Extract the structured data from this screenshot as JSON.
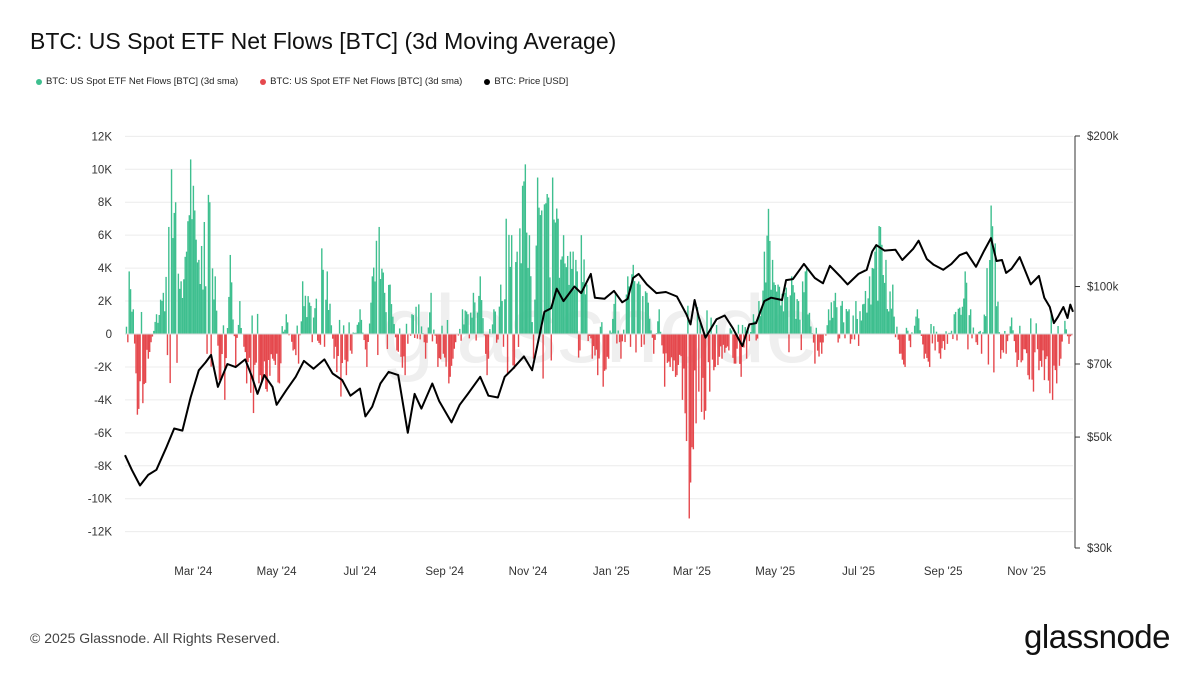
{
  "colors": {
    "inflow": "#3ebf8f",
    "outflow": "#e5484d",
    "price": "#000000",
    "grid": "#ececec",
    "watermark": "#efefef"
  },
  "footer": {
    "copyright": "© 2025 Glassnode. All Rights Reserved.",
    "logo_text": "glassnode",
    "watermark": "glassnode"
  },
  "chart_data": {
    "type": "bar+line",
    "title": "BTC: US Spot ETF Net Flows [BTC] (3d Moving Average)",
    "legend": [
      {
        "label": "BTC: US Spot ETF Net Flows [BTC] (3d sma)",
        "color": "#3ebf8f"
      },
      {
        "label": "BTC: US Spot ETF Net Flows [BTC] (3d sma)",
        "color": "#e5484d"
      },
      {
        "label": "BTC: Price [USD]",
        "color": "#000000"
      }
    ],
    "legend_position": "top-left",
    "grid": true,
    "x_range": [
      "2024-01-11",
      "2025-12-05"
    ],
    "x_ticks": [
      {
        "date": "2024-03-01",
        "label": "Mar '24"
      },
      {
        "date": "2024-05-01",
        "label": "May '24"
      },
      {
        "date": "2024-07-01",
        "label": "Jul '24"
      },
      {
        "date": "2024-09-01",
        "label": "Sep '24"
      },
      {
        "date": "2024-11-01",
        "label": "Nov '24"
      },
      {
        "date": "2025-01-01",
        "label": "Jan '25"
      },
      {
        "date": "2025-03-01",
        "label": "Mar '25"
      },
      {
        "date": "2025-05-01",
        "label": "May '25"
      },
      {
        "date": "2025-07-01",
        "label": "Jul '25"
      },
      {
        "date": "2025-09-01",
        "label": "Sep '25"
      },
      {
        "date": "2025-11-01",
        "label": "Nov '25"
      }
    ],
    "y_left": {
      "label": "Net Flows [BTC]",
      "ylim": [
        -12500,
        12000
      ],
      "ticks": [
        12000,
        10000,
        8000,
        6000,
        4000,
        2000,
        0,
        -2000,
        -4000,
        -6000,
        -8000,
        -10000,
        -12000
      ],
      "tick_labels": [
        "12K",
        "10K",
        "8K",
        "6K",
        "4K",
        "2K",
        "0",
        "-2K",
        "-4K",
        "-6K",
        "-8K",
        "-10K",
        "-12K"
      ]
    },
    "y_right": {
      "label": "Price [USD]",
      "scale": "log",
      "ylim": [
        30000,
        200000
      ],
      "ticks": [
        200000,
        100000,
        70000,
        50000,
        30000
      ],
      "tick_labels": [
        "$200k",
        "$100k",
        "$70k",
        "$50k",
        "$30k"
      ]
    },
    "flow_anchors_note": "3d SMA net flows [BTC], piecewise envelope read from chart",
    "flows": [
      [
        "2024-01-11",
        0
      ],
      [
        "2024-01-14",
        3800
      ],
      [
        "2024-01-17",
        1500
      ],
      [
        "2024-01-20",
        -4900
      ],
      [
        "2024-01-24",
        -4200
      ],
      [
        "2024-01-28",
        -1500
      ],
      [
        "2024-02-03",
        1200
      ],
      [
        "2024-02-08",
        2500
      ],
      [
        "2024-02-12",
        6500
      ],
      [
        "2024-02-14",
        10000
      ],
      [
        "2024-02-17",
        8000
      ],
      [
        "2024-02-21",
        3200
      ],
      [
        "2024-02-25",
        5000
      ],
      [
        "2024-02-28",
        10600
      ],
      [
        "2024-03-02",
        7500
      ],
      [
        "2024-03-05",
        4500
      ],
      [
        "2024-03-09",
        6800
      ],
      [
        "2024-03-13",
        8000
      ],
      [
        "2024-03-17",
        3500
      ],
      [
        "2024-03-20",
        -2800
      ],
      [
        "2024-03-24",
        -4000
      ],
      [
        "2024-03-28",
        4800
      ],
      [
        "2024-04-01",
        -2000
      ],
      [
        "2024-04-04",
        2000
      ],
      [
        "2024-04-09",
        -3000
      ],
      [
        "2024-04-14",
        -4800
      ],
      [
        "2024-04-19",
        -2500
      ],
      [
        "2024-04-24",
        -3500
      ],
      [
        "2024-04-28",
        -1500
      ],
      [
        "2024-05-03",
        -3000
      ],
      [
        "2024-05-08",
        1200
      ],
      [
        "2024-05-13",
        -1000
      ],
      [
        "2024-05-17",
        -1800
      ],
      [
        "2024-05-20",
        3200
      ],
      [
        "2024-05-24",
        2300
      ],
      [
        "2024-05-28",
        1000
      ],
      [
        "2024-06-03",
        5200
      ],
      [
        "2024-06-07",
        3800
      ],
      [
        "2024-06-12",
        -1500
      ],
      [
        "2024-06-17",
        -3800
      ],
      [
        "2024-06-21",
        -2500
      ],
      [
        "2024-06-25",
        -1200
      ],
      [
        "2024-07-01",
        1500
      ],
      [
        "2024-07-06",
        -2000
      ],
      [
        "2024-07-10",
        3500
      ],
      [
        "2024-07-15",
        6500
      ],
      [
        "2024-07-19",
        2500
      ],
      [
        "2024-07-23",
        3000
      ],
      [
        "2024-07-28",
        -1000
      ],
      [
        "2024-08-03",
        -2500
      ],
      [
        "2024-08-08",
        1200
      ],
      [
        "2024-08-13",
        1800
      ],
      [
        "2024-08-18",
        -1500
      ],
      [
        "2024-08-22",
        2500
      ],
      [
        "2024-08-27",
        -2000
      ],
      [
        "2024-08-31",
        -1200
      ],
      [
        "2024-09-04",
        -3000
      ],
      [
        "2024-09-09",
        -500
      ],
      [
        "2024-09-14",
        1500
      ],
      [
        "2024-09-18",
        1200
      ],
      [
        "2024-09-22",
        2500
      ],
      [
        "2024-09-27",
        3500
      ],
      [
        "2024-10-02",
        -2500
      ],
      [
        "2024-10-07",
        1500
      ],
      [
        "2024-10-12",
        3000
      ],
      [
        "2024-10-16",
        7000
      ],
      [
        "2024-10-20",
        6000
      ],
      [
        "2024-10-24",
        5000
      ],
      [
        "2024-10-28",
        9000
      ],
      [
        "2024-10-30",
        10300
      ],
      [
        "2024-11-02",
        6000
      ],
      [
        "2024-11-05",
        -1500
      ],
      [
        "2024-11-08",
        9500
      ],
      [
        "2024-11-11",
        7500
      ],
      [
        "2024-11-15",
        8500
      ],
      [
        "2024-11-19",
        9500
      ],
      [
        "2024-11-23",
        7000
      ],
      [
        "2024-11-27",
        6000
      ],
      [
        "2024-12-02",
        5000
      ],
      [
        "2024-12-06",
        4500
      ],
      [
        "2024-12-10",
        6000
      ],
      [
        "2024-12-14",
        3000
      ],
      [
        "2024-12-18",
        -1500
      ],
      [
        "2024-12-22",
        -2500
      ],
      [
        "2024-12-26",
        -3200
      ],
      [
        "2024-12-30",
        -1500
      ],
      [
        "2025-01-04",
        2500
      ],
      [
        "2025-01-08",
        -1500
      ],
      [
        "2025-01-13",
        3500
      ],
      [
        "2025-01-17",
        4200
      ],
      [
        "2025-01-22",
        3000
      ],
      [
        "2025-01-27",
        2500
      ],
      [
        "2025-02-01",
        -1200
      ],
      [
        "2025-02-05",
        1500
      ],
      [
        "2025-02-09",
        -3200
      ],
      [
        "2025-02-13",
        -2000
      ],
      [
        "2025-02-18",
        -2500
      ],
      [
        "2025-02-22",
        -4000
      ],
      [
        "2025-02-25",
        -6500
      ],
      [
        "2025-02-27",
        -11200
      ],
      [
        "2025-03-02",
        -7000
      ],
      [
        "2025-03-06",
        -3500
      ],
      [
        "2025-03-10",
        -5200
      ],
      [
        "2025-03-14",
        -3500
      ],
      [
        "2025-03-18",
        -2000
      ],
      [
        "2025-03-23",
        -1500
      ],
      [
        "2025-03-28",
        -1000
      ],
      [
        "2025-04-02",
        -1800
      ],
      [
        "2025-04-06",
        -2600
      ],
      [
        "2025-04-10",
        -1500
      ],
      [
        "2025-04-15",
        1200
      ],
      [
        "2025-04-19",
        2000
      ],
      [
        "2025-04-23",
        5000
      ],
      [
        "2025-04-26",
        7600
      ],
      [
        "2025-04-29",
        4500
      ],
      [
        "2025-05-03",
        3000
      ],
      [
        "2025-05-08",
        2500
      ],
      [
        "2025-05-13",
        3500
      ],
      [
        "2025-05-18",
        2000
      ],
      [
        "2025-05-24",
        4000
      ],
      [
        "2025-05-30",
        -1800
      ],
      [
        "2025-06-04",
        -1200
      ],
      [
        "2025-06-09",
        1500
      ],
      [
        "2025-06-14",
        2500
      ],
      [
        "2025-06-19",
        2000
      ],
      [
        "2025-06-24",
        1500
      ],
      [
        "2025-06-29",
        2000
      ],
      [
        "2025-07-04",
        1800
      ],
      [
        "2025-07-09",
        3500
      ],
      [
        "2025-07-13",
        5000
      ],
      [
        "2025-07-17",
        6500
      ],
      [
        "2025-07-21",
        4500
      ],
      [
        "2025-07-26",
        3000
      ],
      [
        "2025-07-31",
        -1200
      ],
      [
        "2025-08-04",
        -2000
      ],
      [
        "2025-08-08",
        -800
      ],
      [
        "2025-08-13",
        1500
      ],
      [
        "2025-08-18",
        -1500
      ],
      [
        "2025-08-22",
        -2000
      ],
      [
        "2025-08-26",
        -1000
      ],
      [
        "2025-08-30",
        -1500
      ],
      [
        "2025-09-04",
        -600
      ],
      [
        "2025-09-09",
        1200
      ],
      [
        "2025-09-13",
        1600
      ],
      [
        "2025-09-17",
        3800
      ],
      [
        "2025-09-21",
        1500
      ],
      [
        "2025-09-25",
        -500
      ],
      [
        "2025-09-29",
        -1200
      ],
      [
        "2025-10-03",
        4000
      ],
      [
        "2025-10-06",
        7800
      ],
      [
        "2025-10-09",
        5500
      ],
      [
        "2025-10-13",
        -1500
      ],
      [
        "2025-10-17",
        -1200
      ],
      [
        "2025-10-21",
        1000
      ],
      [
        "2025-10-25",
        -2000
      ],
      [
        "2025-10-29",
        -1600
      ],
      [
        "2025-11-02",
        -2500
      ],
      [
        "2025-11-06",
        -3500
      ],
      [
        "2025-11-10",
        -2200
      ],
      [
        "2025-11-14",
        -2800
      ],
      [
        "2025-11-18",
        -3600
      ],
      [
        "2025-11-20",
        -4000
      ],
      [
        "2025-11-23",
        -3000
      ],
      [
        "2025-11-26",
        -1500
      ],
      [
        "2025-11-29",
        800
      ],
      [
        "2025-12-02",
        -600
      ],
      [
        "2025-12-05",
        0
      ]
    ],
    "price": [
      [
        "2024-01-11",
        46000
      ],
      [
        "2024-01-16",
        43000
      ],
      [
        "2024-01-22",
        40000
      ],
      [
        "2024-01-28",
        42000
      ],
      [
        "2024-02-03",
        43000
      ],
      [
        "2024-02-10",
        47500
      ],
      [
        "2024-02-16",
        52000
      ],
      [
        "2024-02-22",
        51500
      ],
      [
        "2024-02-28",
        60000
      ],
      [
        "2024-03-05",
        68000
      ],
      [
        "2024-03-10",
        70500
      ],
      [
        "2024-03-14",
        73000
      ],
      [
        "2024-03-19",
        63000
      ],
      [
        "2024-03-26",
        70000
      ],
      [
        "2024-04-01",
        69000
      ],
      [
        "2024-04-08",
        71500
      ],
      [
        "2024-04-13",
        66000
      ],
      [
        "2024-04-17",
        61000
      ],
      [
        "2024-04-22",
        66500
      ],
      [
        "2024-04-28",
        63000
      ],
      [
        "2024-05-01",
        58000
      ],
      [
        "2024-05-08",
        62000
      ],
      [
        "2024-05-15",
        66000
      ],
      [
        "2024-05-21",
        71000
      ],
      [
        "2024-05-28",
        68500
      ],
      [
        "2024-06-05",
        71500
      ],
      [
        "2024-06-11",
        67000
      ],
      [
        "2024-06-18",
        65000
      ],
      [
        "2024-06-24",
        60500
      ],
      [
        "2024-07-01",
        62500
      ],
      [
        "2024-07-05",
        55000
      ],
      [
        "2024-07-10",
        57500
      ],
      [
        "2024-07-16",
        64000
      ],
      [
        "2024-07-22",
        67500
      ],
      [
        "2024-07-29",
        66500
      ],
      [
        "2024-08-05",
        51000
      ],
      [
        "2024-08-10",
        61000
      ],
      [
        "2024-08-15",
        57000
      ],
      [
        "2024-08-23",
        64000
      ],
      [
        "2024-08-28",
        59000
      ],
      [
        "2024-09-06",
        53500
      ],
      [
        "2024-09-12",
        58000
      ],
      [
        "2024-09-18",
        61000
      ],
      [
        "2024-09-27",
        66000
      ],
      [
        "2024-10-03",
        60500
      ],
      [
        "2024-10-10",
        60000
      ],
      [
        "2024-10-15",
        66000
      ],
      [
        "2024-10-21",
        68500
      ],
      [
        "2024-10-29",
        72500
      ],
      [
        "2024-11-04",
        68000
      ],
      [
        "2024-11-08",
        76500
      ],
      [
        "2024-11-13",
        89000
      ],
      [
        "2024-11-18",
        90500
      ],
      [
        "2024-11-22",
        99000
      ],
      [
        "2024-11-27",
        93500
      ],
      [
        "2024-12-05",
        100000
      ],
      [
        "2024-12-10",
        97000
      ],
      [
        "2024-12-17",
        106000
      ],
      [
        "2024-12-20",
        95000
      ],
      [
        "2024-12-27",
        94500
      ],
      [
        "2025-01-03",
        98000
      ],
      [
        "2025-01-09",
        93000
      ],
      [
        "2025-01-13",
        94500
      ],
      [
        "2025-01-17",
        104000
      ],
      [
        "2025-01-21",
        106000
      ],
      [
        "2025-01-27",
        101000
      ],
      [
        "2025-02-03",
        97000
      ],
      [
        "2025-02-10",
        97500
      ],
      [
        "2025-02-18",
        95500
      ],
      [
        "2025-02-25",
        88000
      ],
      [
        "2025-02-28",
        84000
      ],
      [
        "2025-03-03",
        94000
      ],
      [
        "2025-03-06",
        87000
      ],
      [
        "2025-03-11",
        79000
      ],
      [
        "2025-03-19",
        86000
      ],
      [
        "2025-03-25",
        87500
      ],
      [
        "2025-03-31",
        82500
      ],
      [
        "2025-04-07",
        76000
      ],
      [
        "2025-04-12",
        84000
      ],
      [
        "2025-04-17",
        84500
      ],
      [
        "2025-04-23",
        93500
      ],
      [
        "2025-04-28",
        95000
      ],
      [
        "2025-05-06",
        94000
      ],
      [
        "2025-05-09",
        103000
      ],
      [
        "2025-05-14",
        103500
      ],
      [
        "2025-05-22",
        111000
      ],
      [
        "2025-05-30",
        104000
      ],
      [
        "2025-06-05",
        101500
      ],
      [
        "2025-06-10",
        110000
      ],
      [
        "2025-06-18",
        104500
      ],
      [
        "2025-06-23",
        101000
      ],
      [
        "2025-07-01",
        106000
      ],
      [
        "2025-07-07",
        108000
      ],
      [
        "2025-07-11",
        117500
      ],
      [
        "2025-07-14",
        121000
      ],
      [
        "2025-07-20",
        118000
      ],
      [
        "2025-07-28",
        118500
      ],
      [
        "2025-08-02",
        113000
      ],
      [
        "2025-08-10",
        119000
      ],
      [
        "2025-08-14",
        123500
      ],
      [
        "2025-08-20",
        113500
      ],
      [
        "2025-08-25",
        110500
      ],
      [
        "2025-09-01",
        108000
      ],
      [
        "2025-09-07",
        111000
      ],
      [
        "2025-09-13",
        115500
      ],
      [
        "2025-09-18",
        117000
      ],
      [
        "2025-09-25",
        109500
      ],
      [
        "2025-10-01",
        118000
      ],
      [
        "2025-10-06",
        125000
      ],
      [
        "2025-10-10",
        112500
      ],
      [
        "2025-10-14",
        113000
      ],
      [
        "2025-10-17",
        106500
      ],
      [
        "2025-10-21",
        108500
      ],
      [
        "2025-10-27",
        114500
      ],
      [
        "2025-11-04",
        101000
      ],
      [
        "2025-11-10",
        105000
      ],
      [
        "2025-11-14",
        95000
      ],
      [
        "2025-11-18",
        91000
      ],
      [
        "2025-11-21",
        84500
      ],
      [
        "2025-11-24",
        87000
      ],
      [
        "2025-11-28",
        91000
      ],
      [
        "2025-12-01",
        86500
      ],
      [
        "2025-12-03",
        92000
      ],
      [
        "2025-12-05",
        89000
      ]
    ]
  }
}
